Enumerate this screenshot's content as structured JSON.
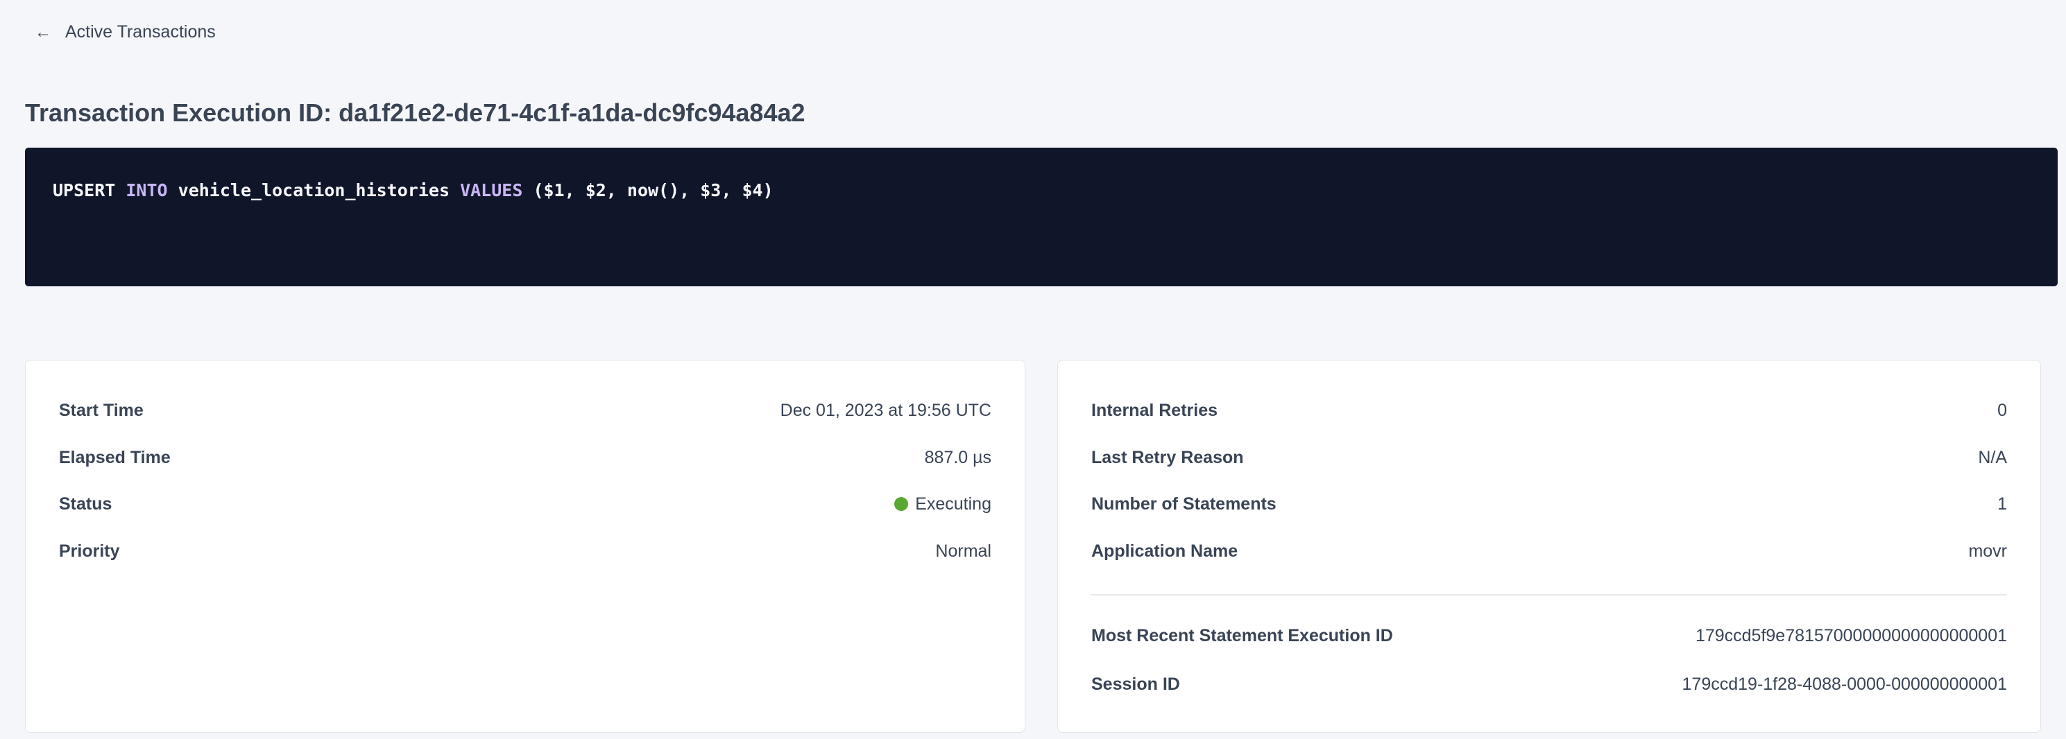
{
  "nav": {
    "back_label": "Active Transactions",
    "back_icon": "arrow-left-icon"
  },
  "title": "Transaction Execution ID: da1f21e2-de71-4c1f-a1da-dc9fc94a84a2",
  "sql": {
    "t1": "UPSERT",
    "t2": "INTO",
    "t3": "vehicle_location_histories",
    "t4": "VALUES",
    "t5": "($1, $2, now(), $3, $4)"
  },
  "left_card": {
    "rows": [
      {
        "label": "Start Time",
        "value": "Dec 01, 2023 at 19:56 UTC"
      },
      {
        "label": "Elapsed Time",
        "value": "887.0 µs"
      },
      {
        "label": "Status",
        "value": "Executing",
        "status_color": "#5aa832"
      },
      {
        "label": "Priority",
        "value": "Normal"
      }
    ]
  },
  "right_card": {
    "rows": [
      {
        "label": "Internal Retries",
        "value": "0"
      },
      {
        "label": "Last Retry Reason",
        "value": "N/A"
      },
      {
        "label": "Number of Statements",
        "value": "1"
      },
      {
        "label": "Application Name",
        "value": "movr"
      }
    ],
    "links": [
      {
        "label": "Most Recent Statement Execution ID",
        "value": "179ccd5f9e78157000000000000000001"
      },
      {
        "label": "Session ID",
        "value": "179ccd19-1f28-4088-0000-000000000001"
      }
    ]
  }
}
